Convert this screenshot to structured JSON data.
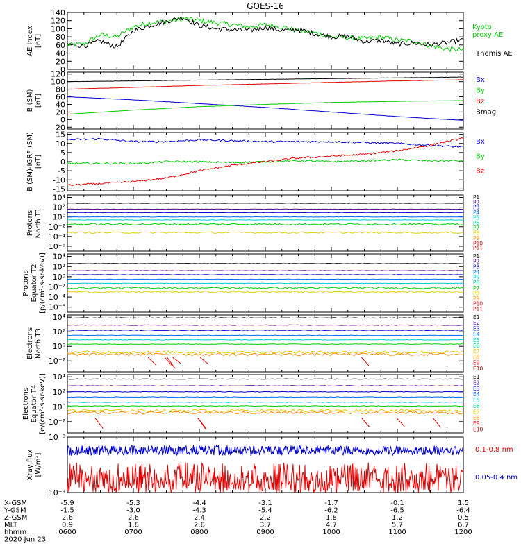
{
  "title": "GOES-16",
  "colors": {
    "black": "#000000",
    "red": "#e00000",
    "green": "#00cc00",
    "blue": "#0000cc",
    "cyan": "#00cccc",
    "yellow": "#ddcc00",
    "orange": "#ff8800",
    "purple": "#8800aa"
  },
  "chart_data": [
    {
      "type": "line",
      "id": "ae",
      "ylabel": [
        "AE index",
        "[nT]"
      ],
      "yticks": [
        "0",
        "20",
        "40",
        "60",
        "80",
        "100",
        "120",
        "140"
      ],
      "ylim": [
        0,
        140
      ],
      "series": [
        {
          "name": "Kyoto proxy AE",
          "color": "#00cc00",
          "x": [
            6.0,
            6.25,
            6.5,
            6.75,
            7.0,
            7.25,
            7.5,
            7.75,
            8.0,
            8.25,
            8.5,
            8.75,
            9.0,
            9.25,
            9.5,
            9.75,
            10.0,
            10.25,
            10.5,
            10.75,
            11.0,
            11.25,
            11.5,
            11.75,
            12.0
          ],
          "values": [
            60,
            62,
            85,
            80,
            105,
            115,
            118,
            125,
            120,
            115,
            110,
            105,
            110,
            105,
            95,
            90,
            80,
            78,
            75,
            80,
            72,
            70,
            58,
            50,
            48
          ]
        },
        {
          "name": "Themis AE",
          "color": "#000000",
          "x": [
            6.0,
            6.25,
            6.5,
            6.75,
            7.0,
            7.25,
            7.5,
            7.75,
            8.0,
            8.25,
            8.5,
            8.75,
            9.0,
            9.25,
            9.5,
            9.75,
            10.0,
            10.25,
            10.5,
            10.75,
            11.0,
            11.25,
            11.5,
            11.75,
            12.0
          ],
          "values": [
            62,
            58,
            70,
            55,
            95,
            108,
            118,
            128,
            108,
            100,
            98,
            95,
            104,
            96,
            98,
            88,
            80,
            82,
            68,
            72,
            62,
            65,
            60,
            66,
            72
          ]
        }
      ]
    },
    {
      "type": "line",
      "id": "bsm",
      "ylabel": [
        "B (SM)",
        "[nT]"
      ],
      "yticks": [
        "-20",
        "0",
        "20",
        "40",
        "60",
        "80",
        "100",
        "120"
      ],
      "ylim": [
        -25,
        125
      ],
      "series": [
        {
          "name": "Bx",
          "color": "#0000cc",
          "x": [
            6,
            7,
            8,
            9,
            10,
            11,
            12
          ],
          "values": [
            60,
            52,
            42,
            32,
            20,
            8,
            -2
          ]
        },
        {
          "name": "By",
          "color": "#00cc00",
          "x": [
            6,
            7,
            8,
            9,
            10,
            11,
            12
          ],
          "values": [
            14,
            25,
            34,
            40,
            45,
            48,
            50
          ]
        },
        {
          "name": "Bz",
          "color": "#e00000",
          "x": [
            6,
            7,
            8,
            9,
            10,
            11,
            12
          ],
          "values": [
            80,
            85,
            90,
            94,
            98,
            102,
            105
          ]
        },
        {
          "name": "Bmag",
          "color": "#000000",
          "x": [
            6,
            7,
            8,
            9,
            10,
            11,
            12
          ],
          "values": [
            100,
            102,
            104,
            106,
            108,
            110,
            112
          ]
        }
      ]
    },
    {
      "type": "line",
      "id": "bigrf",
      "ylabel": [
        "B (SM)-IGRF (SM)",
        "[nT]"
      ],
      "yticks": [
        "-15",
        "-10",
        "-5",
        "0",
        "5",
        "10",
        "15"
      ],
      "ylim": [
        -16,
        16
      ],
      "series": [
        {
          "name": "Bx",
          "color": "#0000cc",
          "x": [
            6,
            6.5,
            7,
            7.5,
            8,
            8.5,
            9,
            9.5,
            10,
            10.5,
            11,
            11.5,
            12
          ],
          "values": [
            12,
            12.5,
            11,
            11,
            12,
            11.5,
            11,
            11,
            11,
            10.5,
            10,
            9,
            8
          ]
        },
        {
          "name": "By",
          "color": "#00cc00",
          "x": [
            6,
            6.5,
            7,
            7.5,
            8,
            8.5,
            9,
            9.5,
            10,
            10.5,
            11,
            11.5,
            12
          ],
          "values": [
            -1,
            -1,
            -1,
            0,
            0,
            -0.5,
            0,
            0.5,
            0,
            0.5,
            1,
            0.5,
            0.5
          ]
        },
        {
          "name": "Bz",
          "color": "#e00000",
          "x": [
            6,
            6.5,
            7,
            7.5,
            8,
            8.5,
            9,
            9.5,
            10,
            10.5,
            11,
            11.5,
            12
          ],
          "values": [
            -13,
            -12,
            -11,
            -9,
            -5,
            -2,
            0,
            2,
            3,
            4,
            6,
            9,
            13
          ]
        }
      ]
    },
    {
      "type": "line",
      "id": "pn",
      "ylabel": [
        "Protons",
        "North T1"
      ],
      "yticks": [
        "10⁻⁶",
        "10⁻⁴",
        "10⁻²",
        "10⁰",
        "10²",
        "10⁴"
      ],
      "ylim": [
        -7,
        4.5
      ],
      "log": true,
      "legend": [
        "P1",
        "P2",
        "P3",
        "P4",
        "P5",
        "P6",
        "P7",
        "P8",
        "P9",
        "P10",
        "P11"
      ],
      "legend_colors": [
        "#000000",
        "#440088",
        "#0000cc",
        "#0066ff",
        "#00cccc",
        "#00cc88",
        "#00cc00",
        "#ddcc00",
        "#ff8800",
        "#e00000",
        "#aa0000"
      ],
      "levels": [
        2.8,
        1.6,
        0.9,
        0.0,
        -0.6,
        -1.5,
        -3.2
      ],
      "level_colors": [
        "#000000",
        "#440088",
        "#0000cc",
        "#0066ff",
        "#00cccc",
        "#00cc00",
        "#ddcc00"
      ]
    },
    {
      "type": "line",
      "id": "pe",
      "ylabel": [
        "Protons",
        "Equator T2",
        "[p/(cm²-s-sr-keV)]"
      ],
      "yticks": [
        "10⁻⁶",
        "10⁻⁴",
        "10⁻²",
        "10⁰",
        "10²",
        "10⁴"
      ],
      "ylim": [
        -7,
        4.5
      ],
      "log": true,
      "legend": [
        "P1",
        "P2",
        "P3",
        "P4",
        "P5",
        "P6",
        "P7",
        "P8",
        "P9",
        "P10",
        "P11"
      ],
      "legend_colors": [
        "#000000",
        "#440088",
        "#0000cc",
        "#0066ff",
        "#00cccc",
        "#00cc88",
        "#00cc00",
        "#ddcc00",
        "#ff8800",
        "#e00000",
        "#aa0000"
      ],
      "levels": [
        2.6,
        1.2,
        0.4,
        -0.5,
        -1.3,
        -2.2,
        -3.0
      ],
      "level_colors": [
        "#000000",
        "#440088",
        "#0000cc",
        "#0066ff",
        "#00cccc",
        "#00cc00",
        "#ddcc00"
      ]
    },
    {
      "type": "line",
      "id": "en",
      "ylabel": [
        "Electrons",
        "North T3"
      ],
      "yticks": [
        "10⁻²",
        "10⁰",
        "10²",
        "10⁴"
      ],
      "ylim": [
        -3.5,
        4.3
      ],
      "log": true,
      "legend": [
        "E1",
        "E2",
        "E3",
        "E4",
        "E5",
        "E6",
        "E7",
        "E8",
        "E9",
        "E10"
      ],
      "legend_colors": [
        "#000000",
        "#440088",
        "#0000cc",
        "#0066ff",
        "#00cccc",
        "#00cc88",
        "#ddcc00",
        "#ff8800",
        "#e00000",
        "#aa0000"
      ],
      "levels": [
        3.9,
        2.9,
        2.2,
        1.5,
        0.9,
        0.3,
        -0.8,
        -1.1
      ],
      "level_colors": [
        "#000000",
        "#440088",
        "#0000cc",
        "#0066ff",
        "#00cccc",
        "#00cc00",
        "#ddcc00",
        "#ff8800"
      ]
    },
    {
      "type": "line",
      "id": "ee",
      "ylabel": [
        "Electrons",
        "Equator T4",
        "[e/(cm²-s-sr-keV)]"
      ],
      "yticks": [
        "10⁻²",
        "10⁰",
        "10²",
        "10⁴"
      ],
      "ylim": [
        -3.5,
        4.3
      ],
      "log": true,
      "legend": [
        "E1",
        "E2",
        "E3",
        "E4",
        "E5",
        "E6",
        "E7",
        "E8",
        "E9",
        "E10"
      ],
      "legend_colors": [
        "#000000",
        "#440088",
        "#0000cc",
        "#0066ff",
        "#00cccc",
        "#00cc88",
        "#ddcc00",
        "#ff8800",
        "#e00000",
        "#aa0000"
      ],
      "levels": [
        3.7,
        2.8,
        2.0,
        1.3,
        0.6,
        0.1,
        -0.5,
        -0.8
      ],
      "level_colors": [
        "#000000",
        "#440088",
        "#0000cc",
        "#0066ff",
        "#00cccc",
        "#00cc00",
        "#ddcc00",
        "#ff8800"
      ]
    },
    {
      "type": "line",
      "id": "xray",
      "ylabel": [
        "Xray flux",
        "[W/m²]"
      ],
      "yticks": [
        "10⁻⁹",
        "10⁻⁸"
      ],
      "ylim": [
        -9,
        -8
      ],
      "log": true,
      "series": [
        {
          "name": "0.1-0.8 nm",
          "color": "#e00000"
        },
        {
          "name": "0.05-0.4 nm",
          "color": "#0000cc"
        }
      ]
    }
  ],
  "orbit": {
    "rows": [
      {
        "label": "X-GSM",
        "values": [
          "-5.9",
          "-5.3",
          "-4.4",
          "-3.1",
          "-1.7",
          "-0.1",
          "1.5"
        ]
      },
      {
        "label": "Y-GSM",
        "values": [
          "-1.5",
          "-3.0",
          "-4.3",
          "-5.4",
          "-6.2",
          "-6.5",
          "-6.4"
        ]
      },
      {
        "label": "Z-GSM",
        "values": [
          "2.6",
          "2.6",
          "2.4",
          "2.2",
          "1.8",
          "1.2",
          "0.5"
        ]
      },
      {
        "label": "MLT",
        "values": [
          "0.9",
          "1.8",
          "2.8",
          "3.7",
          "4.7",
          "5.7",
          "6.7"
        ]
      },
      {
        "label": "hhmm",
        "values": [
          "0600",
          "0700",
          "0800",
          "0900",
          "1000",
          "1100",
          "1200"
        ]
      }
    ],
    "date": "2020 Jun 23"
  }
}
